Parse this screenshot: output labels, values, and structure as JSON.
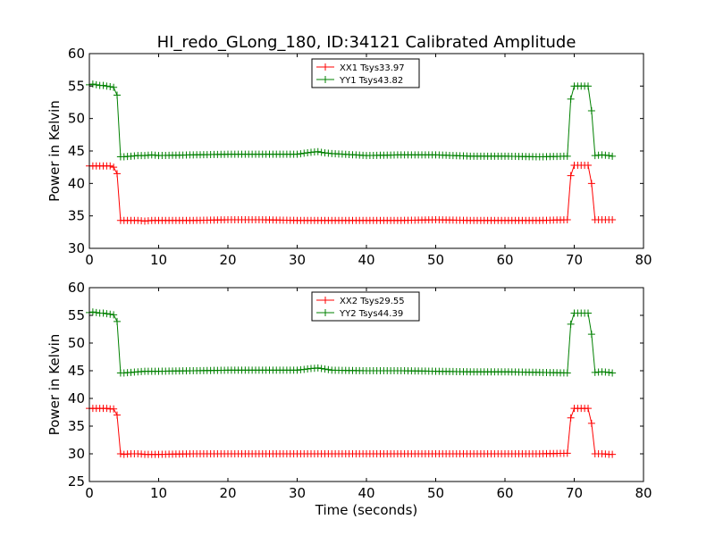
{
  "title": "HI_redo_GLong_180, ID:34121 Calibrated Amplitude",
  "colors": {
    "red": "#ff0000",
    "green": "#008000"
  },
  "chart_data": [
    {
      "type": "line",
      "xlabel": "",
      "ylabel": "Power in Kelvin",
      "xlim": [
        0,
        80
      ],
      "ylim": [
        30,
        60
      ],
      "xticks": [
        0,
        10,
        20,
        30,
        40,
        50,
        60,
        70,
        80
      ],
      "yticks": [
        30,
        35,
        40,
        45,
        50,
        55,
        60
      ],
      "legend_position": "top-center",
      "grid": false,
      "series": [
        {
          "name": "XX1 Tsys33.97",
          "color": "#ff0000",
          "marker": "+",
          "x": [
            0,
            0.5,
            1,
            1.5,
            2,
            2.5,
            3,
            3.5,
            4,
            4.5,
            5,
            6,
            7,
            8,
            9,
            10,
            15,
            20,
            25,
            30,
            35,
            40,
            45,
            50,
            55,
            60,
            65,
            69,
            69.5,
            70,
            70.5,
            71,
            71.5,
            72,
            72.5,
            73,
            74,
            75,
            75.5
          ],
          "y": [
            42.7,
            42.7,
            42.7,
            42.7,
            42.7,
            42.7,
            42.7,
            42.5,
            41.5,
            34.3,
            34.3,
            34.3,
            34.3,
            34.2,
            34.3,
            34.3,
            34.3,
            34.4,
            34.4,
            34.3,
            34.3,
            34.3,
            34.3,
            34.4,
            34.3,
            34.3,
            34.3,
            34.4,
            41.2,
            42.8,
            42.8,
            42.8,
            42.8,
            42.8,
            40.0,
            34.4,
            34.4,
            34.4,
            34.4
          ]
        },
        {
          "name": "YY1 Tsys43.82",
          "color": "#008000",
          "marker": "+",
          "x": [
            0,
            0.5,
            1,
            1.5,
            2,
            2.5,
            3,
            3.5,
            4,
            4.5,
            5,
            6,
            7,
            8,
            9,
            10,
            15,
            20,
            25,
            30,
            32,
            33,
            34,
            35,
            40,
            45,
            50,
            55,
            60,
            65,
            69,
            69.5,
            70,
            70.5,
            71,
            71.5,
            72,
            72.5,
            73,
            74,
            75,
            75.5
          ],
          "y": [
            55.2,
            55.3,
            55.2,
            55.1,
            55.1,
            55.0,
            54.9,
            54.8,
            53.6,
            44.1,
            44.1,
            44.2,
            44.3,
            44.3,
            44.4,
            44.3,
            44.4,
            44.5,
            44.5,
            44.5,
            44.8,
            44.9,
            44.7,
            44.6,
            44.3,
            44.4,
            44.4,
            44.2,
            44.2,
            44.1,
            44.2,
            53.0,
            55.0,
            55.0,
            55.0,
            55.0,
            55.0,
            51.2,
            44.3,
            44.4,
            44.3,
            44.2
          ]
        }
      ]
    },
    {
      "type": "line",
      "xlabel": "Time (seconds)",
      "ylabel": "Power in Kelvin",
      "xlim": [
        0,
        80
      ],
      "ylim": [
        25,
        60
      ],
      "xticks": [
        0,
        10,
        20,
        30,
        40,
        50,
        60,
        70,
        80
      ],
      "yticks": [
        25,
        30,
        35,
        40,
        45,
        50,
        55,
        60
      ],
      "legend_position": "top-center",
      "grid": false,
      "series": [
        {
          "name": "XX2 Tsys29.55",
          "color": "#ff0000",
          "marker": "+",
          "x": [
            0,
            0.5,
            1,
            1.5,
            2,
            2.5,
            3,
            3.5,
            4,
            4.5,
            5,
            6,
            7,
            8,
            9,
            10,
            15,
            20,
            25,
            30,
            35,
            40,
            45,
            50,
            55,
            60,
            65,
            69,
            69.5,
            70,
            70.5,
            71,
            71.5,
            72,
            72.5,
            73,
            74,
            75,
            75.5
          ],
          "y": [
            38.2,
            38.2,
            38.2,
            38.2,
            38.2,
            38.2,
            38.1,
            38.1,
            37.0,
            30.0,
            29.9,
            30.0,
            30.0,
            29.9,
            29.9,
            29.9,
            30.0,
            30.0,
            30.0,
            30.0,
            30.0,
            30.0,
            30.0,
            30.0,
            30.0,
            30.0,
            30.0,
            30.1,
            36.5,
            38.2,
            38.2,
            38.2,
            38.2,
            38.2,
            35.5,
            30.0,
            30.0,
            29.9,
            29.9
          ]
        },
        {
          "name": "YY2 Tsys44.39",
          "color": "#008000",
          "marker": "+",
          "x": [
            0,
            0.5,
            1,
            1.5,
            2,
            2.5,
            3,
            3.5,
            4,
            4.5,
            5,
            6,
            7,
            8,
            9,
            10,
            15,
            20,
            25,
            30,
            32,
            33,
            34,
            35,
            40,
            45,
            50,
            55,
            60,
            65,
            69,
            69.5,
            70,
            70.5,
            71,
            71.5,
            72,
            72.5,
            73,
            74,
            75,
            75.5
          ],
          "y": [
            55.5,
            55.6,
            55.5,
            55.4,
            55.4,
            55.3,
            55.2,
            55.1,
            53.9,
            44.6,
            44.6,
            44.7,
            44.8,
            44.9,
            44.9,
            44.9,
            45.0,
            45.1,
            45.1,
            45.1,
            45.4,
            45.5,
            45.3,
            45.1,
            45.0,
            45.0,
            44.9,
            44.8,
            44.8,
            44.7,
            44.6,
            53.4,
            55.4,
            55.4,
            55.4,
            55.4,
            55.4,
            51.6,
            44.7,
            44.8,
            44.7,
            44.6
          ]
        }
      ]
    }
  ]
}
